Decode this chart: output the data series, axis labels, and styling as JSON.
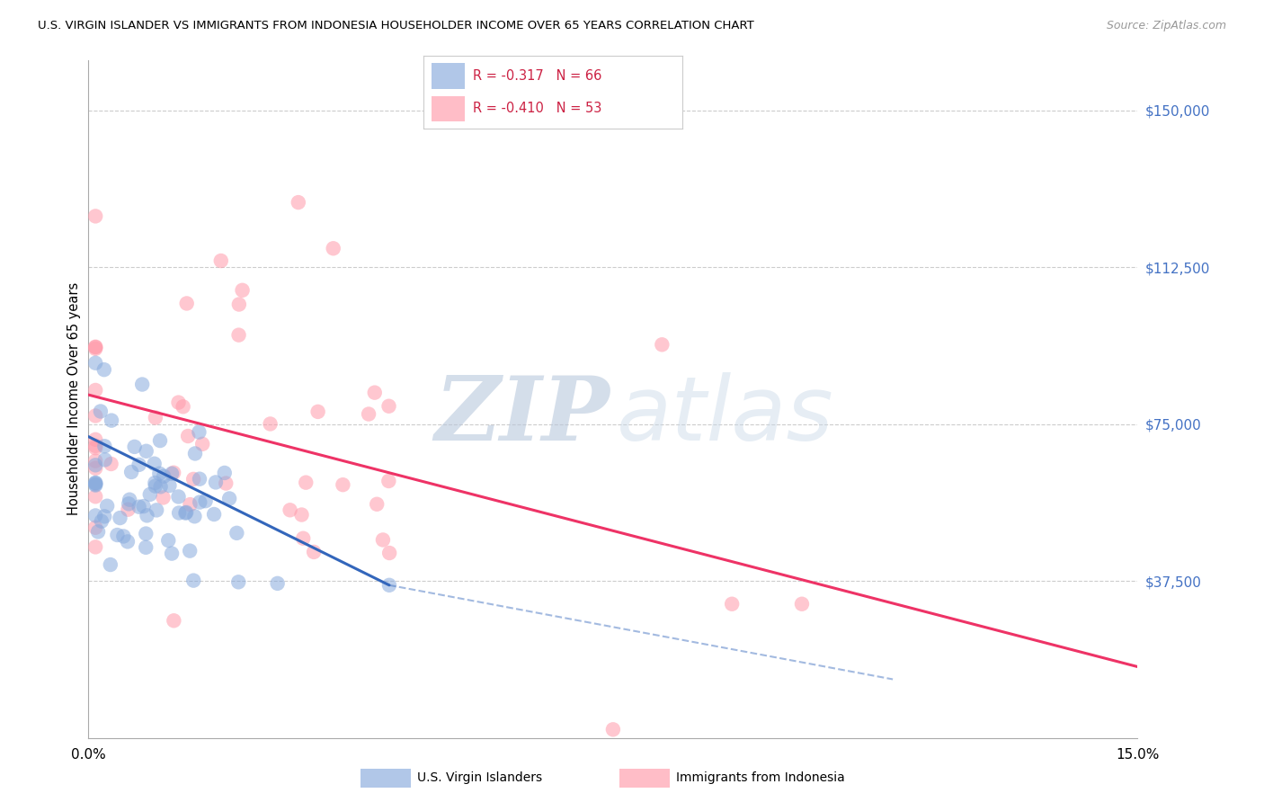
{
  "title": "U.S. VIRGIN ISLANDER VS IMMIGRANTS FROM INDONESIA HOUSEHOLDER INCOME OVER 65 YEARS CORRELATION CHART",
  "source": "Source: ZipAtlas.com",
  "ylabel": "Householder Income Over 65 years",
  "x_range": [
    0.0,
    0.15
  ],
  "y_range": [
    0,
    162000
  ],
  "legend_blue_r": "-0.317",
  "legend_blue_n": "66",
  "legend_pink_r": "-0.410",
  "legend_pink_n": "53",
  "blue_color": "#88AADD",
  "pink_color": "#FF9AAA",
  "blue_line_color": "#3366BB",
  "pink_line_color": "#EE3366",
  "grid_color": "#CCCCCC",
  "blue_line_solid": [
    [
      0.0,
      72000
    ],
    [
      0.043,
      36500
    ]
  ],
  "blue_line_dash": [
    [
      0.043,
      36500
    ],
    [
      0.115,
      14000
    ]
  ],
  "pink_line": [
    [
      0.0,
      82000
    ],
    [
      0.15,
      17000
    ]
  ],
  "legend_label_blue": "U.S. Virgin Islanders",
  "legend_label_pink": "Immigrants from Indonesia"
}
